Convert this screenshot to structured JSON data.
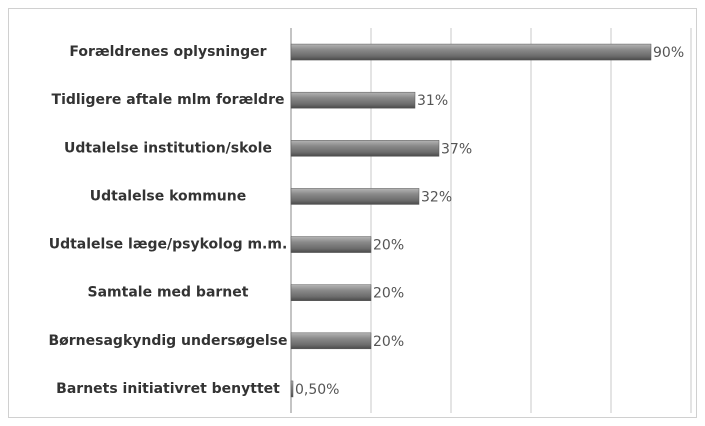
{
  "chart_data": {
    "type": "hbar",
    "categories": [
      "Forældrenes oplysninger",
      "Tidligere aftale mlm forældre",
      "Udtalelse institution/skole",
      "Udtalelse kommune",
      "Udtalelse læge/psykolog m.m.",
      "Samtale med barnet",
      "Børnesagkyndig undersøgelse",
      "Barnets initiativret benyttet"
    ],
    "values": [
      90,
      31,
      37,
      32,
      20,
      20,
      20,
      0.5
    ],
    "value_labels": [
      "90%",
      "31%",
      "37%",
      "32%",
      "20%",
      "20%",
      "20%",
      "0,50%"
    ],
    "color": "#808080",
    "xlim": [
      0,
      100
    ],
    "xticks": [
      0,
      20,
      40,
      60,
      80,
      100
    ],
    "grid": true
  }
}
